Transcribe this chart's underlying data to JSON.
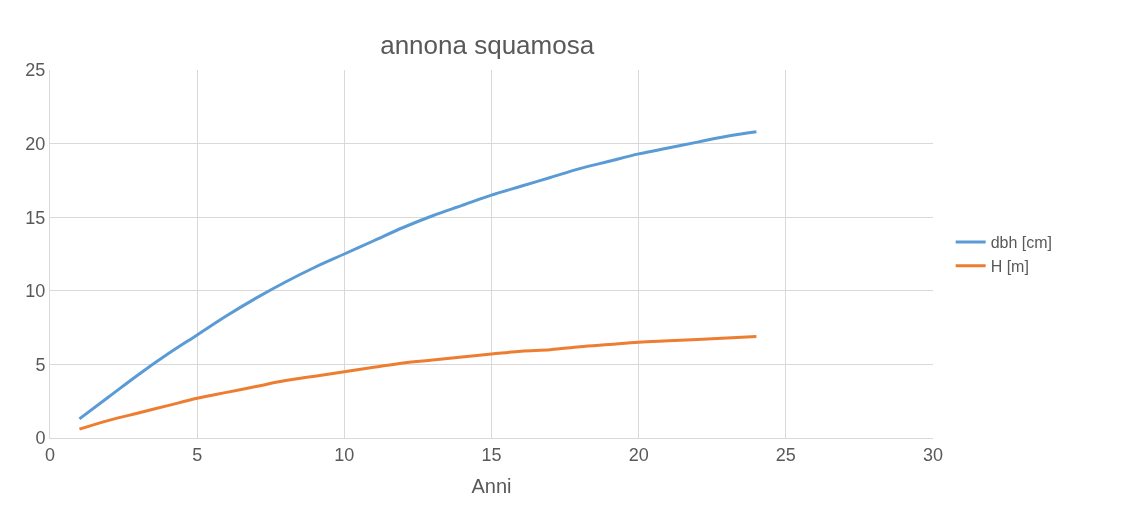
{
  "chart_data": {
    "type": "line",
    "title": "annona squamosa",
    "xlabel": "Anni",
    "x": [
      1,
      2,
      3,
      4,
      5,
      6,
      7,
      8,
      9,
      10,
      11,
      12,
      13,
      14,
      15,
      16,
      17,
      18,
      19,
      20,
      21,
      22,
      23,
      24
    ],
    "series": [
      {
        "name": "dbh [cm]",
        "color": "#5b9bd5",
        "values": [
          1.3,
          2.8,
          4.3,
          5.7,
          7.0,
          8.3,
          9.5,
          10.6,
          11.6,
          12.5,
          13.4,
          14.3,
          15.1,
          15.8,
          16.5,
          17.1,
          17.7,
          18.3,
          18.8,
          19.3,
          19.7,
          20.1,
          20.5,
          20.8
        ]
      },
      {
        "name": "H [m]",
        "color": "#ed7d31",
        "values": [
          0.6,
          1.2,
          1.7,
          2.2,
          2.7,
          3.1,
          3.5,
          3.9,
          4.2,
          4.5,
          4.8,
          5.1,
          5.3,
          5.5,
          5.7,
          5.9,
          6.0,
          6.2,
          6.35,
          6.5,
          6.6,
          6.7,
          6.8,
          6.9
        ]
      }
    ],
    "xlim": [
      0,
      30
    ],
    "xticks": [
      0,
      5,
      10,
      15,
      20,
      25,
      30
    ],
    "ylim": [
      0,
      25
    ],
    "yticks": [
      0,
      5,
      10,
      15,
      20,
      25
    ],
    "grid": true,
    "legend": "right",
    "marker": "none",
    "line_style": "solid"
  }
}
